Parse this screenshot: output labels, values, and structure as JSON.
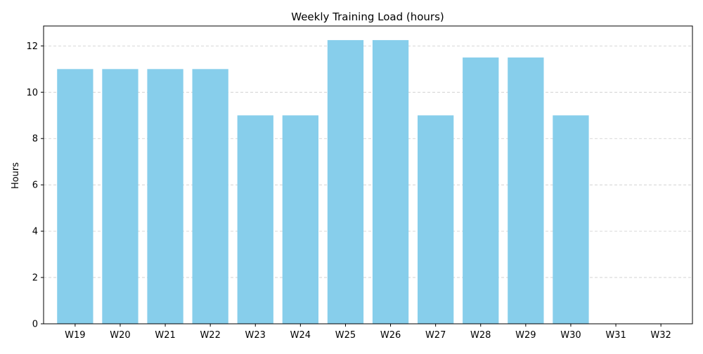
{
  "colors": {
    "bar": "#87CEEB",
    "grid": "#cccccc",
    "axis": "#000000"
  },
  "chart_data": {
    "type": "bar",
    "title": "Weekly Training Load (hours)",
    "xlabel": "",
    "ylabel": "Hours",
    "categories": [
      "W19",
      "W20",
      "W21",
      "W22",
      "W23",
      "W24",
      "W25",
      "W26",
      "W27",
      "W28",
      "W29",
      "W30",
      "W31",
      "W32"
    ],
    "values": [
      11,
      11,
      11,
      11,
      9,
      9,
      12.25,
      12.25,
      9,
      11.5,
      11.5,
      9,
      0,
      0
    ],
    "ylim": [
      0,
      12.86
    ],
    "yticks": [
      0,
      2,
      4,
      6,
      8,
      10,
      12
    ],
    "grid": "y-dashed",
    "legend": "none"
  }
}
